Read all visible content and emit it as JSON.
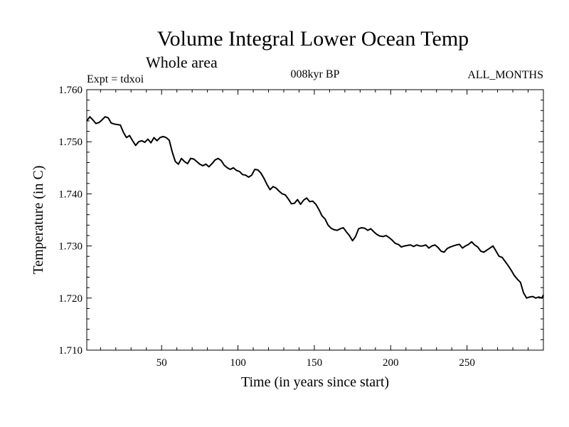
{
  "chart_data": {
    "type": "line",
    "title": "Volume Integral Lower Ocean Temp",
    "subtitle": "Whole area",
    "annotations": {
      "left": "Expt = tdxoi",
      "center": "008kyr BP",
      "right": "ALL_MONTHS"
    },
    "xlabel": "Time (in years since start)",
    "ylabel": "Temperature (in C)",
    "xlim": [
      1,
      300
    ],
    "ylim": [
      1.71,
      1.76
    ],
    "x_ticks": [
      50,
      100,
      150,
      200,
      250
    ],
    "x_tick_labels": [
      "50",
      "100",
      "150",
      "200",
      "250"
    ],
    "y_ticks": [
      1.71,
      1.72,
      1.73,
      1.74,
      1.75,
      1.76
    ],
    "y_tick_labels": [
      "1.710",
      "1.720",
      "1.730",
      "1.740",
      "1.750",
      "1.760"
    ],
    "grid": false,
    "series": [
      {
        "name": "Volume Integral Lower Ocean Temp",
        "color": "#000000",
        "x": [
          1,
          3,
          5,
          7,
          9,
          11,
          13,
          15,
          17,
          19,
          21,
          23,
          25,
          27,
          29,
          31,
          33,
          35,
          37,
          39,
          41,
          43,
          45,
          47,
          49,
          51,
          53,
          55,
          57,
          59,
          61,
          63,
          65,
          67,
          69,
          71,
          73,
          75,
          77,
          79,
          81,
          83,
          85,
          87,
          89,
          91,
          93,
          95,
          97,
          99,
          101,
          103,
          105,
          107,
          109,
          111,
          113,
          115,
          117,
          119,
          121,
          123,
          125,
          127,
          129,
          131,
          133,
          135,
          137,
          139,
          141,
          143,
          145,
          147,
          149,
          151,
          153,
          155,
          157,
          159,
          161,
          163,
          165,
          167,
          169,
          171,
          173,
          175,
          177,
          179,
          181,
          183,
          185,
          187,
          189,
          191,
          193,
          195,
          197,
          199,
          201,
          203,
          205,
          207,
          209,
          211,
          213,
          215,
          217,
          219,
          221,
          223,
          225,
          227,
          229,
          231,
          233,
          235,
          237,
          239,
          241,
          243,
          245,
          247,
          249,
          251,
          253,
          255,
          257,
          259,
          261,
          263,
          265,
          267,
          269,
          271,
          273,
          275,
          277,
          279,
          281,
          283,
          285,
          287,
          289,
          291,
          293,
          295,
          297,
          299,
          300
        ],
        "values": [
          1.754,
          1.7548,
          1.7542,
          1.7535,
          1.7537,
          1.7542,
          1.7548,
          1.7546,
          1.7536,
          1.7534,
          1.7533,
          1.7532,
          1.7518,
          1.7508,
          1.7512,
          1.7502,
          1.7493,
          1.75,
          1.7502,
          1.7499,
          1.7505,
          1.7498,
          1.7508,
          1.7502,
          1.7508,
          1.751,
          1.7508,
          1.7503,
          1.748,
          1.7462,
          1.7457,
          1.7468,
          1.7462,
          1.7458,
          1.7468,
          1.7467,
          1.7462,
          1.7457,
          1.7454,
          1.7457,
          1.7452,
          1.7458,
          1.7465,
          1.7468,
          1.7464,
          1.7455,
          1.745,
          1.7447,
          1.745,
          1.7445,
          1.7443,
          1.7437,
          1.7436,
          1.7432,
          1.7436,
          1.7447,
          1.7446,
          1.744,
          1.743,
          1.7418,
          1.7408,
          1.7414,
          1.7411,
          1.7405,
          1.74,
          1.7398,
          1.739,
          1.7381,
          1.7382,
          1.7389,
          1.738,
          1.7388,
          1.7392,
          1.7385,
          1.7386,
          1.738,
          1.737,
          1.7358,
          1.7352,
          1.734,
          1.7334,
          1.7331,
          1.733,
          1.7333,
          1.7335,
          1.7327,
          1.732,
          1.731,
          1.7318,
          1.7333,
          1.7335,
          1.7334,
          1.733,
          1.7333,
          1.7327,
          1.7322,
          1.7319,
          1.7318,
          1.732,
          1.7316,
          1.7311,
          1.7305,
          1.7303,
          1.7298,
          1.73,
          1.7301,
          1.7302,
          1.7299,
          1.7302,
          1.73,
          1.73,
          1.7302,
          1.7296,
          1.73,
          1.7302,
          1.7297,
          1.729,
          1.7288,
          1.7295,
          1.7298,
          1.73,
          1.7302,
          1.7303,
          1.7296,
          1.73,
          1.7303,
          1.7308,
          1.7302,
          1.7298,
          1.729,
          1.7288,
          1.7292,
          1.7296,
          1.73,
          1.729,
          1.728,
          1.7278,
          1.727,
          1.7262,
          1.7253,
          1.7243,
          1.7236,
          1.723,
          1.721,
          1.72,
          1.7202,
          1.7203,
          1.72,
          1.7202,
          1.72,
          1.7206
        ]
      }
    ]
  }
}
